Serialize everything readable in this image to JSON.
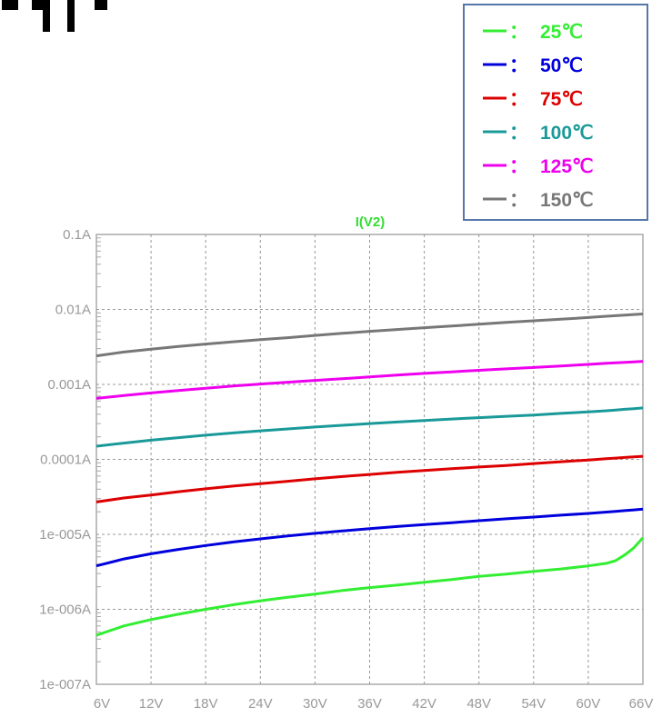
{
  "chart_data": {
    "type": "line",
    "title": "I(V2)",
    "title_color": "#33dd33",
    "x_ticks": [
      "6V",
      "12V",
      "18V",
      "24V",
      "30V",
      "36V",
      "42V",
      "48V",
      "54V",
      "60V",
      "66V"
    ],
    "y_ticks": [
      "0.1A",
      "0.01A",
      "0.001A",
      "0.0001A",
      "1e-005A",
      "1e-006A",
      "1e-007A"
    ],
    "x_range": [
      6,
      66
    ],
    "y_range": [
      1e-07,
      0.1
    ],
    "y_scale": "log",
    "grid": true,
    "legend_position": "top-right",
    "legend_separator": "：",
    "x": [
      6,
      9,
      12,
      15,
      18,
      21,
      24,
      27,
      30,
      33,
      36,
      39,
      42,
      45,
      48,
      51,
      54,
      57,
      60,
      62,
      63,
      64,
      65,
      66
    ],
    "series": [
      {
        "name": "25℃",
        "color": "#33ee33",
        "values": [
          4.5e-07,
          6e-07,
          7.3e-07,
          8.6e-07,
          1e-06,
          1.15e-06,
          1.3e-06,
          1.45e-06,
          1.6e-06,
          1.78e-06,
          1.95e-06,
          2.1e-06,
          2.3e-06,
          2.5e-06,
          2.75e-06,
          2.95e-06,
          3.2e-06,
          3.45e-06,
          3.8e-06,
          4.1e-06,
          4.45e-06,
          5.3e-06,
          6.6e-06,
          9e-06
        ]
      },
      {
        "name": "50℃",
        "color": "#0000dd",
        "values": [
          3.8e-06,
          4.7e-06,
          5.5e-06,
          6.3e-06,
          7.1e-06,
          7.9e-06,
          8.7e-06,
          9.5e-06,
          1.03e-05,
          1.11e-05,
          1.19e-05,
          1.27e-05,
          1.35e-05,
          1.43e-05,
          1.52e-05,
          1.61e-05,
          1.7e-05,
          1.8e-05,
          1.9e-05,
          1.98e-05,
          2.02e-05,
          2.07e-05,
          2.12e-05,
          2.17e-05
        ]
      },
      {
        "name": "75℃",
        "color": "#dd0000",
        "values": [
          2.7e-05,
          3.05e-05,
          3.35e-05,
          3.7e-05,
          4.05e-05,
          4.4e-05,
          4.75e-05,
          5.1e-05,
          5.5e-05,
          5.9e-05,
          6.3e-05,
          6.7e-05,
          7.1e-05,
          7.5e-05,
          7.9e-05,
          8.3e-05,
          8.8e-05,
          9.3e-05,
          9.8e-05,
          0.000102,
          0.000104,
          0.000106,
          0.000108,
          0.00011
        ]
      },
      {
        "name": "100℃",
        "color": "#1a9999",
        "values": [
          0.00015,
          0.000165,
          0.00018,
          0.000195,
          0.00021,
          0.000225,
          0.00024,
          0.000255,
          0.00027,
          0.000285,
          0.0003,
          0.000315,
          0.00033,
          0.000345,
          0.00036,
          0.000375,
          0.00039,
          0.00041,
          0.00043,
          0.000445,
          0.000455,
          0.000465,
          0.000475,
          0.000485
        ]
      },
      {
        "name": "125℃",
        "color": "#ee00ee",
        "values": [
          0.00065,
          0.00071,
          0.00077,
          0.00083,
          0.00089,
          0.00095,
          0.00101,
          0.00107,
          0.00113,
          0.00119,
          0.00126,
          0.00133,
          0.0014,
          0.00147,
          0.00154,
          0.00161,
          0.00168,
          0.00176,
          0.00185,
          0.00191,
          0.00194,
          0.00197,
          0.002,
          0.00203
        ]
      },
      {
        "name": "150℃",
        "color": "#777777",
        "values": [
          0.0024,
          0.0027,
          0.00295,
          0.0032,
          0.00345,
          0.0037,
          0.00395,
          0.0042,
          0.0045,
          0.0048,
          0.0051,
          0.0054,
          0.0057,
          0.006,
          0.00635,
          0.0067,
          0.00705,
          0.0074,
          0.0078,
          0.0081,
          0.00825,
          0.0084,
          0.00855,
          0.0087
        ]
      }
    ]
  }
}
